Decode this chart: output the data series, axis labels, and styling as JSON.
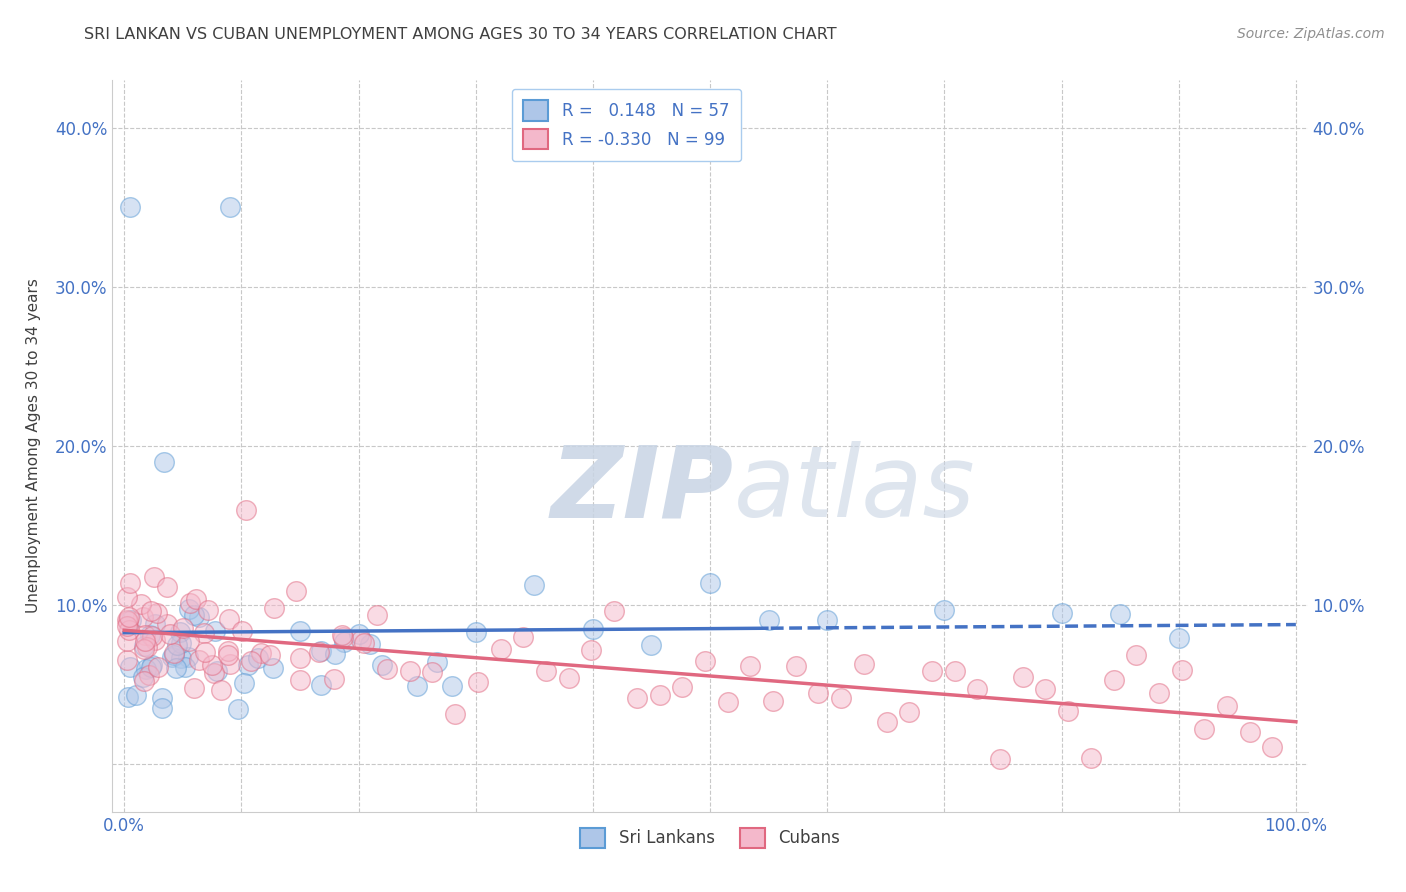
{
  "title": "SRI LANKAN VS CUBAN UNEMPLOYMENT AMONG AGES 30 TO 34 YEARS CORRELATION CHART",
  "source": "Source: ZipAtlas.com",
  "ylabel": "Unemployment Among Ages 30 to 34 years",
  "xlabel": "",
  "xlim": [
    -1,
    101
  ],
  "ylim": [
    -3,
    43
  ],
  "xticks": [
    0,
    10,
    20,
    30,
    40,
    50,
    60,
    70,
    80,
    90,
    100
  ],
  "yticks": [
    0,
    10,
    20,
    30,
    40
  ],
  "sri_lankan_R": 0.148,
  "sri_lankan_N": 57,
  "cuban_R": -0.33,
  "cuban_N": 99,
  "sri_color_face": "#aec6e8",
  "sri_color_edge": "#5b9bd5",
  "cub_color_face": "#f4b8cb",
  "cub_color_edge": "#e06880",
  "sri_line_color": "#4472c4",
  "cub_line_color": "#e06880",
  "axis_label_color": "#4472c4",
  "watermark_color": "#dde5f0",
  "background_color": "#ffffff",
  "grid_color": "#c8c8c8",
  "title_color": "#404040",
  "legend_edge_color": "#aaccee"
}
